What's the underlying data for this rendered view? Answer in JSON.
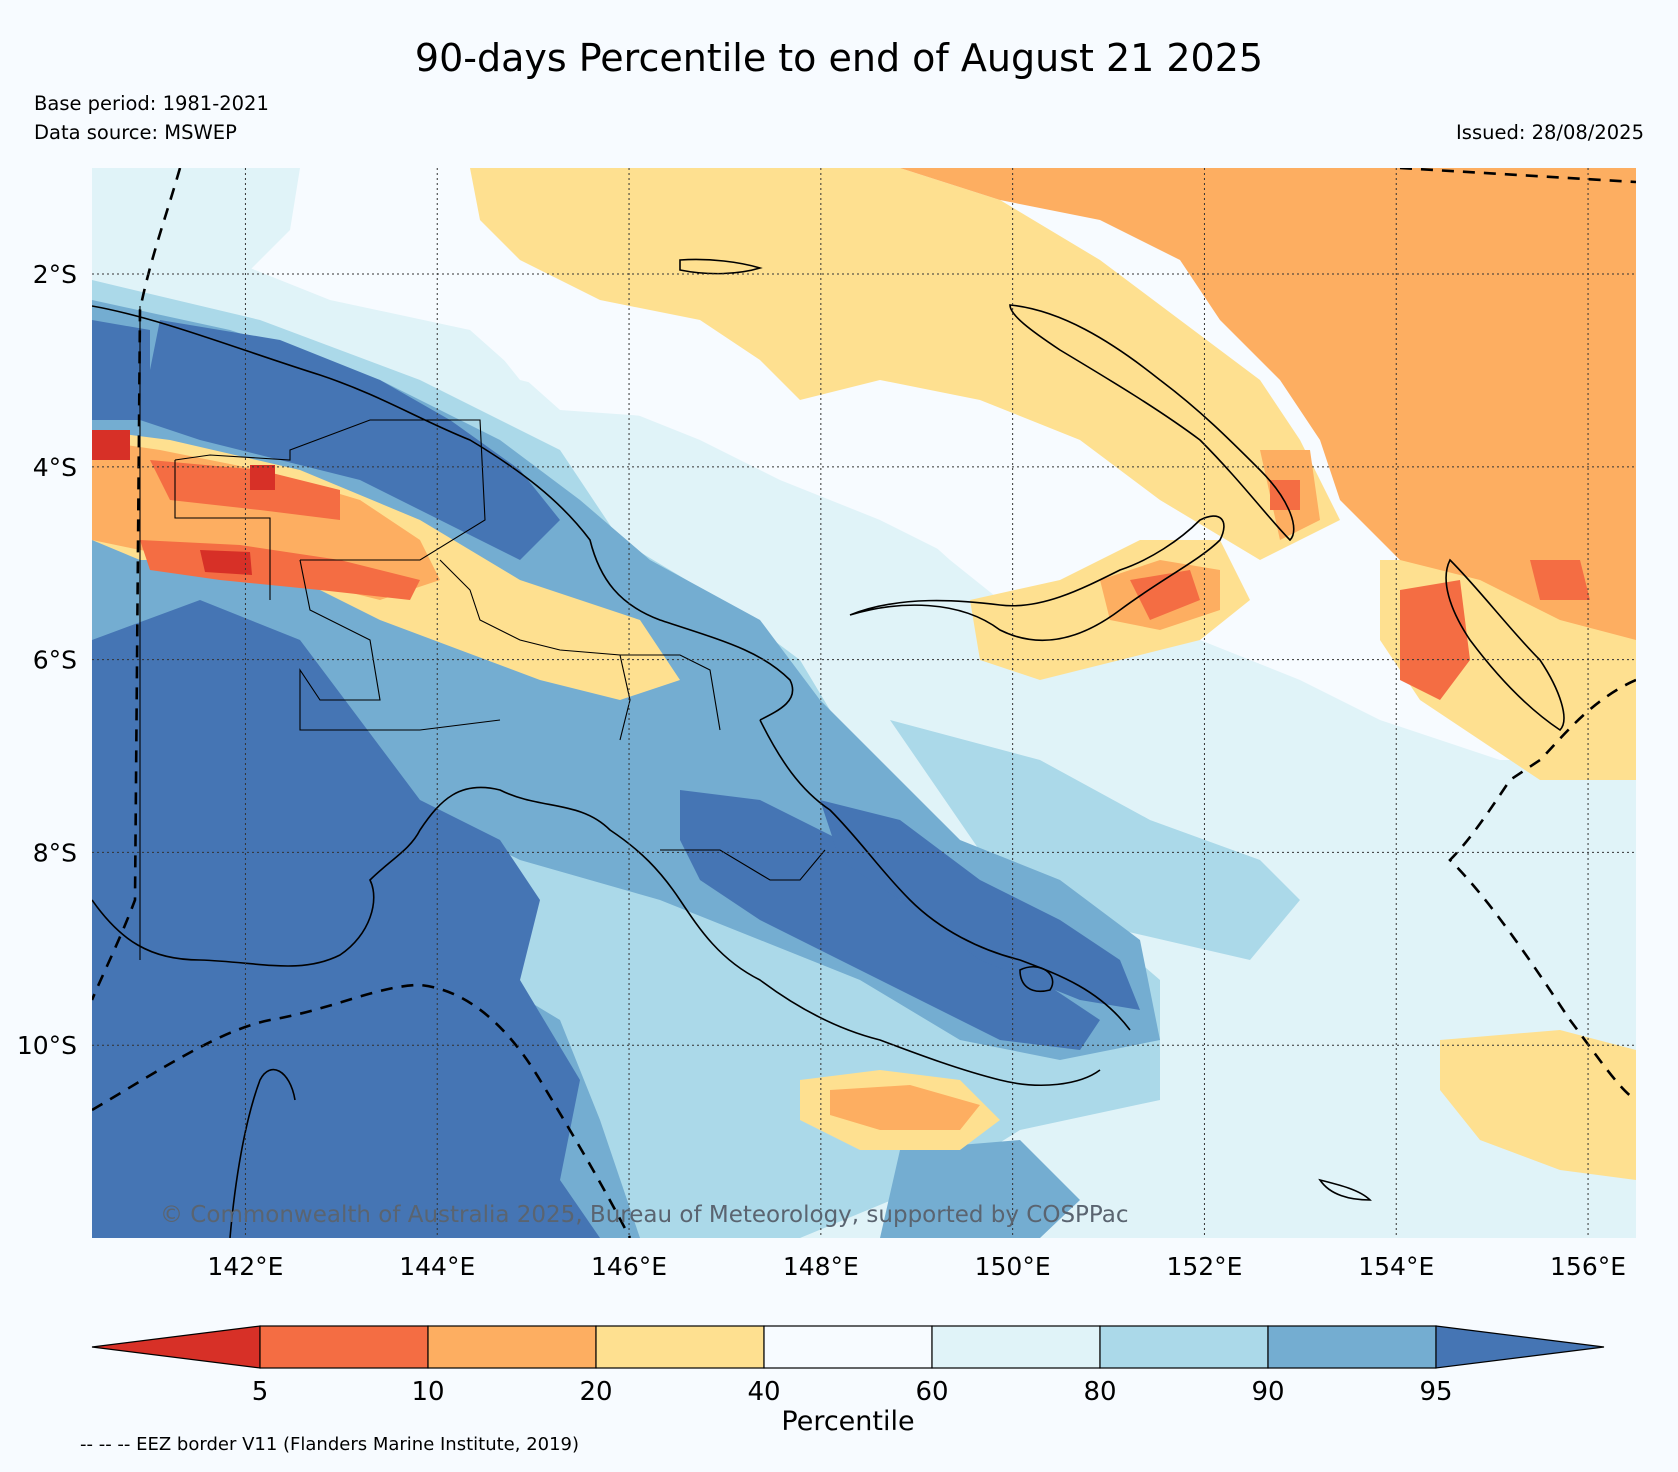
{
  "title": "90-days Percentile to end of August 21 2025",
  "base_period": "Base period: 1981-2021",
  "data_source": "Data source: MSWEP",
  "issued": "Issued: 28/08/2025",
  "copyright": "© Commonwealth of Australia 2025, Bureau of Meteorology, supported by COSPPac",
  "eez_note": "-- -- -- EEZ border V11 (Flanders Marine Institute, 2019)",
  "map": {
    "lon_range": [
      140.4,
      156.5
    ],
    "lat_range": [
      -12.0,
      -0.9
    ],
    "lat_ticks": [
      {
        "value": -2,
        "label": "2°S"
      },
      {
        "value": -4,
        "label": "4°S"
      },
      {
        "value": -6,
        "label": "6°S"
      },
      {
        "value": -8,
        "label": "8°S"
      },
      {
        "value": -10,
        "label": "10°S"
      }
    ],
    "lon_ticks": [
      {
        "value": 142,
        "label": "142°E"
      },
      {
        "value": 144,
        "label": "144°E"
      },
      {
        "value": 146,
        "label": "146°E"
      },
      {
        "value": 148,
        "label": "148°E"
      },
      {
        "value": 150,
        "label": "150°E"
      },
      {
        "value": 152,
        "label": "152°E"
      },
      {
        "value": 154,
        "label": "154°E"
      },
      {
        "value": 156,
        "label": "156°E"
      }
    ],
    "grid": true
  },
  "colorbar": {
    "title": "Percentile",
    "boundaries": [
      "5",
      "10",
      "20",
      "40",
      "60",
      "80",
      "90",
      "95"
    ],
    "colors": [
      "#d73027",
      "#f46d43",
      "#fdae61",
      "#fee090",
      "#f7fbff",
      "#e0f3f8",
      "#abd9e9",
      "#74add1",
      "#4575b4"
    ]
  },
  "legend": {
    "eez_border": "EEZ border V11 (Flanders Marine Institute, 2019)"
  }
}
